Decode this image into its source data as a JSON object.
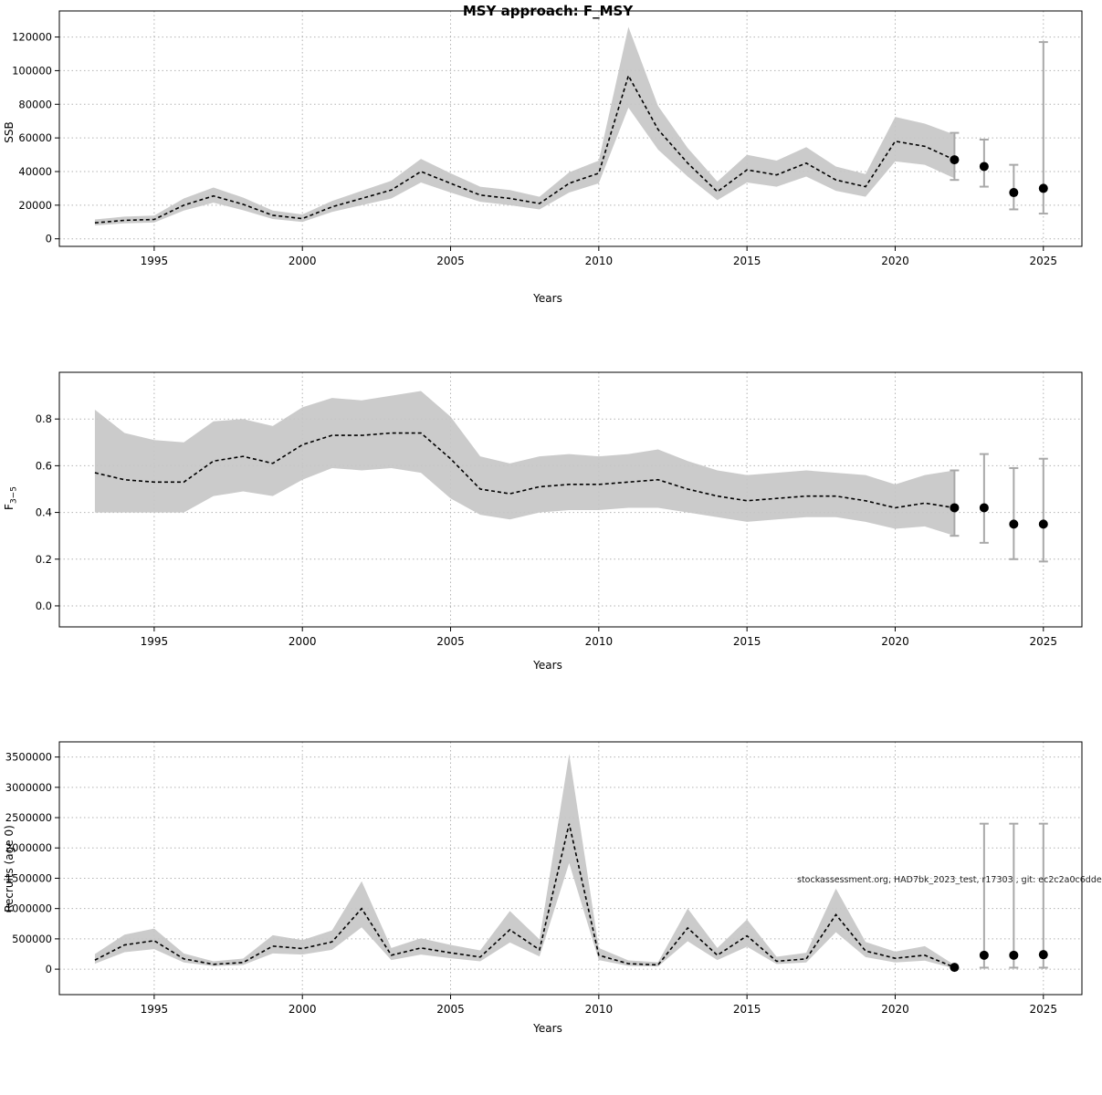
{
  "annotation": "stockassessment.org, HAD7bk_2023_test, r17303 , git: ec2c2a0c6dde",
  "chart_data": [
    {
      "type": "line",
      "title": "MSY approach: F_MSY",
      "xlabel": "Years",
      "ylabel": "SSB",
      "legend": "none",
      "grid": true,
      "band_color": "#c5c5c5",
      "x": [
        1993,
        1994,
        1995,
        1996,
        1997,
        1998,
        1999,
        2000,
        2001,
        2002,
        2003,
        2004,
        2005,
        2006,
        2007,
        2008,
        2009,
        2010,
        2011,
        2012,
        2013,
        2014,
        2015,
        2016,
        2017,
        2018,
        2019,
        2020,
        2021,
        2022
      ],
      "series": [
        {
          "name": "estimate",
          "values": [
            9500,
            11000,
            11500,
            20000,
            25500,
            20500,
            14000,
            12000,
            19000,
            24000,
            29000,
            40000,
            33000,
            26000,
            24000,
            21000,
            33000,
            39000,
            97000,
            65000,
            45000,
            28000,
            41000,
            38000,
            45000,
            35000,
            31000,
            58000,
            55000,
            47000
          ]
        },
        {
          "name": "ci_low",
          "values": [
            8000,
            9200,
            9700,
            16800,
            21500,
            17000,
            11800,
            10000,
            16000,
            20000,
            24000,
            33500,
            27500,
            22000,
            20000,
            17500,
            27500,
            33000,
            78000,
            53000,
            37000,
            23000,
            33500,
            31000,
            37000,
            28500,
            25000,
            46000,
            44000,
            36000
          ]
        },
        {
          "name": "ci_high",
          "values": [
            11500,
            13200,
            13800,
            24000,
            30500,
            24500,
            16800,
            14500,
            22500,
            28500,
            34500,
            47500,
            39000,
            31000,
            29000,
            25000,
            39500,
            46500,
            126000,
            79000,
            54000,
            34000,
            50000,
            46500,
            54500,
            43000,
            38500,
            72500,
            68500,
            62000
          ]
        }
      ],
      "forecast": {
        "x": [
          2022,
          2023,
          2024,
          2025
        ],
        "est": [
          47000,
          43000,
          27500,
          30000
        ],
        "lo": [
          35000,
          31000,
          17500,
          15000
        ],
        "hi": [
          63000,
          59000,
          44000,
          117000
        ]
      },
      "xlim": [
        1991.8,
        2026.3
      ],
      "ylim": [
        -4500,
        135500
      ],
      "xticks": [
        1995,
        2000,
        2005,
        2010,
        2015,
        2020,
        2025
      ],
      "ytick_values": [
        0,
        20000,
        40000,
        60000,
        80000,
        100000,
        120000
      ],
      "ytick_labels": [
        "0",
        "20000",
        "40000",
        "60000",
        "80000",
        "100000",
        "120000"
      ]
    },
    {
      "type": "line",
      "title": "",
      "xlabel": "Years",
      "ylabel": "F",
      "ylabel_sub": "3−5",
      "legend": "none",
      "grid": true,
      "band_color": "#c5c5c5",
      "x": [
        1993,
        1994,
        1995,
        1996,
        1997,
        1998,
        1999,
        2000,
        2001,
        2002,
        2003,
        2004,
        2005,
        2006,
        2007,
        2008,
        2009,
        2010,
        2011,
        2012,
        2013,
        2014,
        2015,
        2016,
        2017,
        2018,
        2019,
        2020,
        2021,
        2022
      ],
      "series": [
        {
          "name": "estimate",
          "values": [
            0.57,
            0.54,
            0.53,
            0.53,
            0.62,
            0.64,
            0.61,
            0.69,
            0.73,
            0.73,
            0.74,
            0.74,
            0.63,
            0.5,
            0.48,
            0.51,
            0.52,
            0.52,
            0.53,
            0.54,
            0.5,
            0.47,
            0.45,
            0.46,
            0.47,
            0.47,
            0.45,
            0.42,
            0.44,
            0.42
          ]
        },
        {
          "name": "ci_low",
          "values": [
            0.4,
            0.4,
            0.4,
            0.4,
            0.47,
            0.49,
            0.47,
            0.54,
            0.59,
            0.58,
            0.59,
            0.57,
            0.46,
            0.39,
            0.37,
            0.4,
            0.41,
            0.41,
            0.42,
            0.42,
            0.4,
            0.38,
            0.36,
            0.37,
            0.38,
            0.38,
            0.36,
            0.33,
            0.34,
            0.3
          ]
        },
        {
          "name": "ci_high",
          "values": [
            0.84,
            0.74,
            0.71,
            0.7,
            0.79,
            0.8,
            0.77,
            0.85,
            0.89,
            0.88,
            0.9,
            0.92,
            0.81,
            0.64,
            0.61,
            0.64,
            0.65,
            0.64,
            0.65,
            0.67,
            0.62,
            0.58,
            0.56,
            0.57,
            0.58,
            0.57,
            0.56,
            0.52,
            0.56,
            0.58
          ]
        }
      ],
      "forecast": {
        "x": [
          2022,
          2023,
          2024,
          2025
        ],
        "est": [
          0.42,
          0.42,
          0.35,
          0.35
        ],
        "lo": [
          0.3,
          0.27,
          0.2,
          0.19
        ],
        "hi": [
          0.58,
          0.65,
          0.59,
          0.63
        ]
      },
      "xlim": [
        1991.8,
        2026.3
      ],
      "ylim": [
        -0.09,
        1.0
      ],
      "xticks": [
        1995,
        2000,
        2005,
        2010,
        2015,
        2020,
        2025
      ],
      "ytick_values": [
        0.0,
        0.2,
        0.4,
        0.6,
        0.8
      ],
      "ytick_labels": [
        "0.0",
        "0.2",
        "0.4",
        "0.6",
        "0.8"
      ]
    },
    {
      "type": "line",
      "title": "",
      "xlabel": "Years",
      "ylabel": "Recruits (age 0)",
      "legend": "none",
      "grid": true,
      "band_color": "#c5c5c5",
      "x": [
        1993,
        1994,
        1995,
        1996,
        1997,
        1998,
        1999,
        2000,
        2001,
        2002,
        2003,
        2004,
        2005,
        2006,
        2007,
        2008,
        2009,
        2010,
        2011,
        2012,
        2013,
        2014,
        2015,
        2016,
        2017,
        2018,
        2019,
        2020,
        2021,
        2022
      ],
      "series": [
        {
          "name": "estimate",
          "values": [
            150000,
            400000,
            470000,
            170000,
            80000,
            110000,
            380000,
            340000,
            450000,
            1000000,
            230000,
            350000,
            270000,
            200000,
            650000,
            320000,
            2400000,
            230000,
            90000,
            70000,
            680000,
            230000,
            550000,
            130000,
            170000,
            900000,
            300000,
            180000,
            230000,
            30000
          ]
        },
        {
          "name": "ci_low",
          "values": [
            90000,
            280000,
            330000,
            110000,
            50000,
            70000,
            260000,
            240000,
            320000,
            690000,
            150000,
            240000,
            180000,
            130000,
            440000,
            210000,
            1750000,
            150000,
            55000,
            45000,
            460000,
            150000,
            370000,
            85000,
            110000,
            610000,
            200000,
            110000,
            140000,
            10000
          ]
        },
        {
          "name": "ci_high",
          "values": [
            250000,
            570000,
            670000,
            260000,
            130000,
            175000,
            560000,
            480000,
            640000,
            1450000,
            350000,
            510000,
            400000,
            310000,
            960000,
            490000,
            3550000,
            350000,
            145000,
            115000,
            1000000,
            350000,
            820000,
            205000,
            270000,
            1330000,
            450000,
            290000,
            380000,
            70000
          ]
        }
      ],
      "forecast": {
        "x": [
          2022,
          2023,
          2024,
          2025
        ],
        "est": [
          30000,
          230000,
          230000,
          240000
        ],
        "lo": [
          30000,
          25000,
          25000,
          25000
        ],
        "hi": [
          30000,
          2400000,
          2400000,
          2400000
        ]
      },
      "xlim": [
        1991.8,
        2026.3
      ],
      "ylim": [
        -420000,
        3750000
      ],
      "xticks": [
        1995,
        2000,
        2005,
        2010,
        2015,
        2020,
        2025
      ],
      "ytick_values": [
        0,
        500000,
        1000000,
        1500000,
        2000000,
        2500000,
        3000000,
        3500000
      ],
      "ytick_labels": [
        "0",
        "500000",
        "1000000",
        "1500000",
        "2000000",
        "2500000",
        "3000000",
        "3500000"
      ]
    }
  ]
}
